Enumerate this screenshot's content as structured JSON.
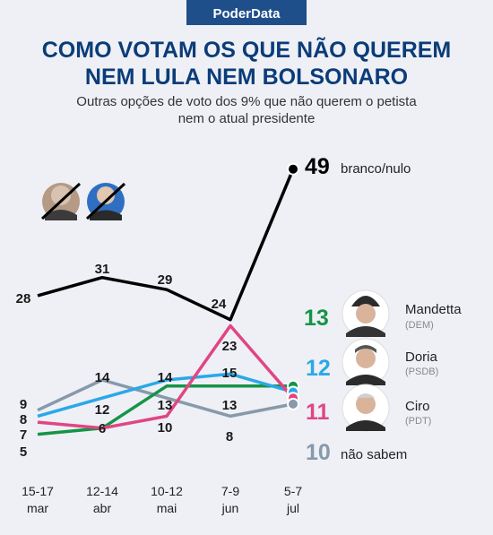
{
  "brand": "PoderData",
  "title_lines": [
    "COMO VOTAM OS QUE NÃO QUEREM",
    "NEM LULA NEM BOLSONARO"
  ],
  "subtitle_lines": [
    "Outras opções de voto dos 9% que não querem o petista",
    "nem o atual presidente"
  ],
  "colors": {
    "title": "#0b3c78",
    "brand_bg": "#1e4f8a",
    "branco_nulo": "#000000",
    "mandetta": "#159447",
    "doria": "#2aa8e8",
    "ciro": "#e04682",
    "nao_sabem": "#8899aa"
  },
  "chart_data": {
    "type": "line",
    "categories": [
      [
        "15-17",
        "mar"
      ],
      [
        "12-14",
        "abr"
      ],
      [
        "10-12",
        "mai"
      ],
      [
        "7-9",
        "jun"
      ],
      [
        "5-7",
        "jul"
      ]
    ],
    "ylim": [
      3,
      50
    ],
    "series": [
      {
        "key": "branco_nulo",
        "name": "branco/nulo",
        "values": [
          28,
          31,
          29,
          24,
          49
        ],
        "color": "#000000",
        "final_label": "49"
      },
      {
        "key": "mandetta",
        "name": "Mandetta",
        "party": "(DEM)",
        "values": [
          5,
          6,
          13,
          13,
          13
        ],
        "color": "#159447",
        "final_label": "13"
      },
      {
        "key": "doria",
        "name": "Doria",
        "party": "(PSDB)",
        "values": [
          8,
          null,
          14,
          15,
          12
        ],
        "color": "#2aa8e8",
        "final_label": "12"
      },
      {
        "key": "ciro",
        "name": "Ciro",
        "party": "(PDT)",
        "values": [
          7,
          6,
          8,
          23,
          11
        ],
        "color": "#e04682",
        "final_label": "11"
      },
      {
        "key": "nao_sabem",
        "name": "não sabem",
        "values": [
          9,
          14,
          null,
          8,
          10
        ],
        "color": "#8899aa",
        "final_label": "10"
      }
    ],
    "data_labels": [
      "28",
      "31",
      "29",
      "24",
      "9",
      "8",
      "7",
      "5",
      "14",
      "12",
      "6",
      "14",
      "13",
      "10",
      "15",
      "23",
      "13",
      "8"
    ]
  }
}
